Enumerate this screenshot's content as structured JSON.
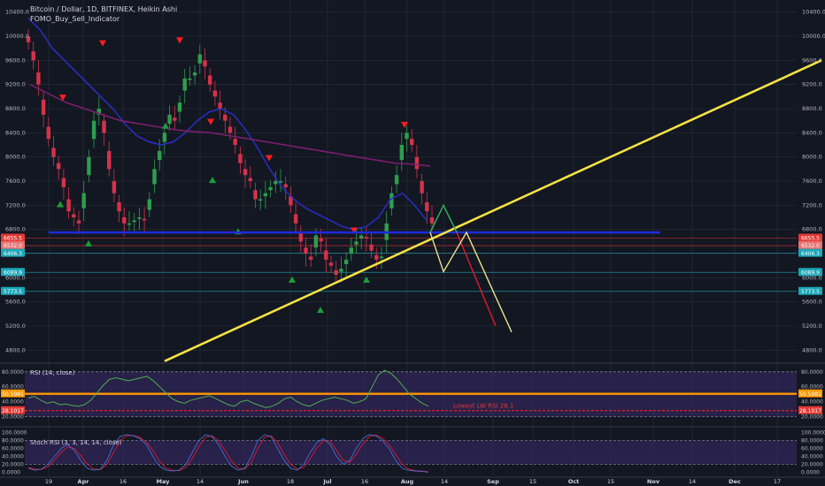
{
  "header": {
    "symbol_line": "Bitcoin / Dollar, 1D, BITFINEX, Heikin Ashi",
    "indicator_line": "FOMO_Buy_Sell_Indicator"
  },
  "chart_data": [
    {
      "type": "candlestick",
      "panel": "price",
      "y_ticks": [
        10400,
        10000,
        9600,
        9200,
        8800,
        8400,
        8000,
        7600,
        7200,
        6800,
        6400,
        6000,
        5600,
        5200,
        4800
      ],
      "ylim": [
        4600,
        10600
      ],
      "x_ticks": [
        "19",
        "Apr",
        "16",
        "May",
        "14",
        "Jun",
        "18",
        "Jul",
        "16",
        "Aug",
        "14",
        "Sep",
        "15",
        "Oct",
        "15",
        "Nov",
        "14",
        "Dec",
        "17"
      ],
      "price_labels_left": [
        "6655.5",
        "6532.0",
        "6406.3",
        "6089.9",
        "5773.5"
      ],
      "price_labels_right": [
        "6655.5",
        "6532.0",
        "6406.3",
        "6089.9",
        "5773.5"
      ],
      "close_path": [
        9900,
        9600,
        9200,
        8700,
        8300,
        8000,
        7800,
        7500,
        7100,
        7000,
        6900,
        7400,
        8000,
        8600,
        8800,
        8400,
        7800,
        7400,
        7100,
        6900,
        6900,
        6950,
        7000,
        6950,
        7300,
        7800,
        8100,
        8400,
        8700,
        8600,
        8900,
        9300,
        9300,
        9400,
        9700,
        9500,
        9200,
        9000,
        8800,
        8600,
        8400,
        8200,
        7900,
        7700,
        7600,
        7300,
        7300,
        7400,
        7500,
        7600,
        7600,
        7500,
        7200,
        6900,
        6600,
        6400,
        6300,
        6700,
        6600,
        6300,
        6200,
        6050,
        6150,
        6300,
        6500,
        6600,
        6700,
        6650,
        6450,
        6300,
        6350,
        6900,
        7400,
        7700,
        8200,
        8400,
        8200,
        7800,
        7400,
        7100,
        6900
      ],
      "ma_blue": [
        10300,
        10100,
        9800,
        9600,
        9400,
        9200,
        9000,
        8800,
        8550,
        8350,
        8250,
        8200,
        8250,
        8400,
        8600,
        8750,
        8800,
        8700,
        8450,
        8150,
        7800,
        7500,
        7300,
        7150,
        7050,
        6950,
        6850,
        6800,
        6850,
        7000,
        7300,
        7400,
        7200,
        6950
      ],
      "ma_purple": [
        9200,
        9050,
        8900,
        8800,
        8700,
        8600,
        8550,
        8500,
        8450,
        8420,
        8400,
        8350,
        8300,
        8250,
        8200,
        8150,
        8100,
        8050,
        8000,
        7950,
        7900,
        7880,
        7850
      ],
      "sell_signals": [
        "Apr 9",
        "Apr 26",
        "May 7",
        "Jun 4",
        "Jun 11",
        "Jul 2",
        "Jul 27"
      ],
      "buy_signals": [
        "Apr 2",
        "Apr 6",
        "Apr 30",
        "Jun 12",
        "Jun 29",
        "Jul 9",
        "Jul 13",
        "Jul 18"
      ],
      "support_line": 6750,
      "trendline": {
        "from": 4620,
        "to": 9600
      },
      "projection_green": [
        6750,
        7200,
        6750
      ],
      "projection_red": [
        6750,
        5200
      ],
      "projection_yellow": [
        6750,
        6100,
        6750,
        5100
      ]
    },
    {
      "type": "line",
      "panel": "rsi",
      "title": "RSI (14, close)",
      "y_ticks": [
        "80.0000",
        "60.0000",
        "40.0000",
        "20.0000"
      ],
      "ylim": [
        10,
        88
      ],
      "levels": {
        "upper": 80,
        "orange": 50.5981,
        "red": 28.1017,
        "lower": 20
      },
      "orange_label": "50.5981",
      "red_label": "28.1017",
      "annotation": "Lowest LW RSI 28.1",
      "values": [
        45,
        47,
        42,
        38,
        40,
        36,
        37,
        35,
        34,
        36,
        42,
        52,
        62,
        70,
        72,
        70,
        68,
        70,
        72,
        74,
        68,
        60,
        52,
        44,
        40,
        38,
        42,
        44,
        46,
        48,
        44,
        40,
        36,
        34,
        40,
        42,
        38,
        35,
        32,
        34,
        38,
        44,
        46,
        40,
        36,
        34,
        38,
        42,
        44,
        46,
        44,
        42,
        38,
        40,
        44,
        60,
        76,
        82,
        78,
        70,
        60,
        50,
        44,
        38,
        34
      ]
    },
    {
      "type": "line",
      "panel": "stoch_rsi",
      "title": "Stoch RSI (3, 3, 14, 14, close)",
      "y_ticks": [
        "100.0000",
        "80.0000",
        "60.0000",
        "40.0000",
        "20.0000",
        "0.0000"
      ],
      "ylim": [
        -8,
        108
      ],
      "values_k": [
        10,
        5,
        8,
        20,
        40,
        60,
        70,
        55,
        30,
        10,
        5,
        8,
        30,
        70,
        90,
        95,
        92,
        85,
        70,
        40,
        15,
        5,
        3,
        5,
        20,
        50,
        80,
        95,
        90,
        70,
        40,
        15,
        5,
        10,
        40,
        80,
        95,
        90,
        60,
        30,
        10,
        5,
        20,
        50,
        75,
        85,
        70,
        40,
        20,
        30,
        60,
        85,
        95,
        92,
        80,
        60,
        30,
        10,
        5,
        3,
        2,
        0
      ],
      "values_d": [
        12,
        8,
        7,
        14,
        30,
        50,
        64,
        60,
        42,
        20,
        8,
        7,
        20,
        50,
        80,
        92,
        93,
        88,
        76,
        55,
        28,
        10,
        5,
        4,
        12,
        35,
        65,
        88,
        92,
        80,
        55,
        28,
        10,
        8,
        25,
        60,
        88,
        92,
        75,
        45,
        20,
        8,
        12,
        35,
        62,
        80,
        78,
        55,
        30,
        25,
        45,
        72,
        90,
        94,
        86,
        70,
        45,
        20,
        8,
        4,
        3,
        1
      ]
    }
  ]
}
